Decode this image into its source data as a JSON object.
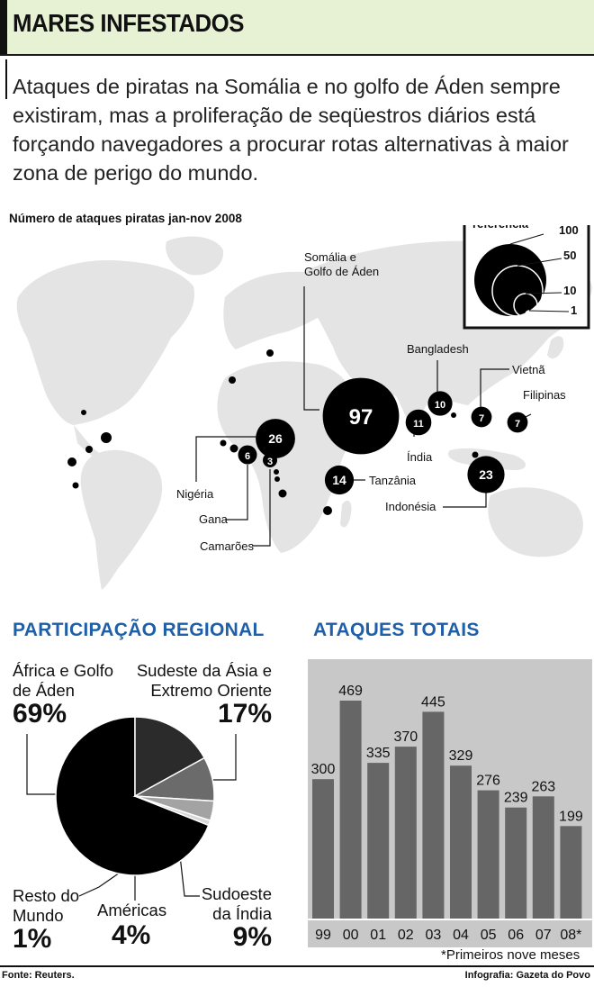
{
  "title": "MARES INFESTADOS",
  "lead": "Ataques de piratas na Somália e no golfo de Áden sempre existiram, mas a proliferação de seqüestros diários está forçando navegadores a procurar rotas alternativas à maior zona de perigo do mundo.",
  "chart_data": [
    {
      "type": "bubble-map",
      "title": "Número de ataques piratas jan-nov 2008",
      "legend": {
        "title": "referência",
        "values": [
          100,
          50,
          10,
          1
        ]
      },
      "regions": [
        {
          "name": "Somália e Golfo de Áden",
          "value": 97
        },
        {
          "name": "Nigéria",
          "value": 26
        },
        {
          "name": "Gana",
          "value": 6
        },
        {
          "name": "Camarões",
          "value": 3
        },
        {
          "name": "Tanzânia",
          "value": 14
        },
        {
          "name": "Índia",
          "value": 11
        },
        {
          "name": "Bangladesh",
          "value": 10
        },
        {
          "name": "Vietnã",
          "value": 7
        },
        {
          "name": "Filipinas",
          "value": 7
        },
        {
          "name": "Indonésia",
          "value": 23
        }
      ]
    },
    {
      "type": "pie",
      "title": "PARTICIPAÇÃO REGIONAL",
      "slices": [
        {
          "name": "África e Golfo de Áden",
          "value": 69,
          "label": "69%",
          "color": "#000000"
        },
        {
          "name": "Sudeste da Ásia e Extremo Oriente",
          "value": 17,
          "label": "17%",
          "color": "#2b2b2b"
        },
        {
          "name": "Sudoeste da Índia",
          "value": 9,
          "label": "9%",
          "color": "#6b6b6b"
        },
        {
          "name": "Américas",
          "value": 4,
          "label": "4%",
          "color": "#a3a3a3"
        },
        {
          "name": "Resto do Mundo",
          "value": 1,
          "label": "1%",
          "color": "#d8d8d8"
        }
      ]
    },
    {
      "type": "bar",
      "title": "ATAQUES TOTAIS",
      "categories": [
        "99",
        "00",
        "01",
        "02",
        "03",
        "04",
        "05",
        "06",
        "07",
        "08*"
      ],
      "values": [
        300,
        469,
        335,
        370,
        445,
        329,
        276,
        239,
        263,
        199
      ],
      "ylim": [
        0,
        500
      ],
      "footnote": "*Primeiros nove meses",
      "bar_color": "#666666"
    }
  ],
  "pie_labels": {
    "africa_l1": "África e Golfo",
    "africa_l2": "de Áden",
    "sea_l1": "Sudeste da Ásia e",
    "sea_l2": "Extremo Oriente",
    "india_l1": "Sudoeste",
    "india_l2": "da Índia",
    "americas": "Américas",
    "rest_l1": "Resto do",
    "rest_l2": "Mundo"
  },
  "source": "Fonte: Reuters.",
  "credit": "Infografia: Gazeta do Povo"
}
